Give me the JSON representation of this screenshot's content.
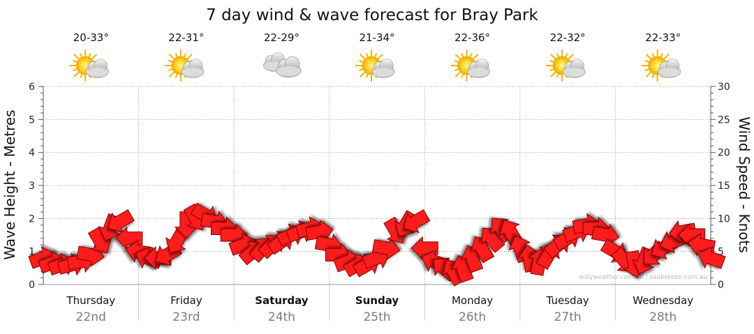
{
  "chart_data": {
    "type": "line",
    "title": "7 day wind & wave forecast for Bray Park",
    "ylabel_left": "Wave Height - Metres",
    "ylabel_right": "Wind Speed - Knots",
    "ylim_left": [
      0,
      6
    ],
    "ylim_right": [
      0,
      30
    ],
    "y_ticks_left": [
      "0",
      "1",
      "2",
      "3",
      "4",
      "5",
      "6"
    ],
    "y_ticks_right": [
      "0",
      "5",
      "10",
      "15",
      "20",
      "25",
      "30"
    ],
    "grid": "dotted",
    "watermark": "willyweather.com.au / seabreeze.com.au",
    "days": [
      {
        "day": "Thursday",
        "date": "22nd",
        "temp": "20-33°",
        "weather": "partly-cloudy-icon",
        "bold": false
      },
      {
        "day": "Friday",
        "date": "23rd",
        "temp": "22-31°",
        "weather": "partly-cloudy-icon",
        "bold": false
      },
      {
        "day": "Saturday",
        "date": "24th",
        "temp": "22-29°",
        "weather": "cloudy-icon",
        "bold": true
      },
      {
        "day": "Sunday",
        "date": "25th",
        "temp": "21-34°",
        "weather": "partly-cloudy-icon",
        "bold": true
      },
      {
        "day": "Monday",
        "date": "26th",
        "temp": "22-36°",
        "weather": "partly-cloudy-icon",
        "bold": false
      },
      {
        "day": "Tuesday",
        "date": "27th",
        "temp": "22-32°",
        "weather": "partly-cloudy-icon",
        "bold": false
      },
      {
        "day": "Wednesday",
        "date": "28th",
        "temp": "22-33°",
        "weather": "partly-cloudy-icon",
        "bold": false
      }
    ],
    "series": [
      {
        "name": "Wind Speed",
        "unit": "knots",
        "marker": "direction-arrow",
        "color": "#ee0000",
        "x_days": [
          0.0,
          0.1,
          0.2,
          0.3,
          0.4,
          0.5,
          0.6,
          0.7,
          0.8,
          0.9,
          1.0,
          1.1,
          1.2,
          1.3,
          1.4,
          1.5,
          1.6,
          1.7,
          1.8,
          1.9,
          2.0,
          2.1,
          2.2,
          2.3,
          2.4,
          2.5,
          2.6,
          2.7,
          2.8,
          2.9,
          3.0,
          3.1,
          3.2,
          3.3,
          3.4,
          3.5,
          3.6,
          3.7,
          3.8,
          3.9,
          4.0,
          4.1,
          4.2,
          4.3,
          4.4,
          4.5,
          4.6,
          4.7,
          4.8,
          4.9,
          5.0,
          5.1,
          5.2,
          5.3,
          5.4,
          5.5,
          5.6,
          5.7,
          5.8,
          5.9,
          6.0,
          6.1,
          6.2,
          6.3,
          6.4,
          6.5,
          6.6,
          6.7,
          6.8,
          6.9,
          7.0
        ],
        "values": [
          4.0,
          3.3,
          3.0,
          3.0,
          3.5,
          4.5,
          6.5,
          8.5,
          9.5,
          7.0,
          5.0,
          4.0,
          4.0,
          4.5,
          6.5,
          9.0,
          10.0,
          10.5,
          9.5,
          8.5,
          7.5,
          6.0,
          5.0,
          5.5,
          6.0,
          6.5,
          7.5,
          8.0,
          8.5,
          8.0,
          6.0,
          4.5,
          3.5,
          3.0,
          3.0,
          4.0,
          5.5,
          8.0,
          9.0,
          9.5,
          5.5,
          3.5,
          2.5,
          2.0,
          2.5,
          4.0,
          5.5,
          7.0,
          8.5,
          8.0,
          5.5,
          4.0,
          3.5,
          4.5,
          6.0,
          7.0,
          8.0,
          9.0,
          8.5,
          7.5,
          5.0,
          3.5,
          3.0,
          3.5,
          4.5,
          5.5,
          6.5,
          8.0,
          7.5,
          6.0,
          4.0
        ],
        "dir_deg": [
          250,
          250,
          250,
          255,
          260,
          280,
          330,
          20,
          60,
          90,
          100,
          110,
          90,
          60,
          30,
          0,
          330,
          300,
          280,
          270,
          270,
          250,
          230,
          220,
          225,
          235,
          245,
          250,
          255,
          260,
          280,
          270,
          250,
          240,
          240,
          250,
          280,
          330,
          30,
          60,
          90,
          110,
          130,
          150,
          160,
          160,
          150,
          140,
          140,
          150,
          160,
          170,
          190,
          210,
          230,
          240,
          250,
          260,
          270,
          280,
          300,
          320,
          350,
          20,
          45,
          60,
          70,
          80,
          90,
          100,
          110
        ]
      },
      {
        "name": "Wave Height",
        "unit": "metres",
        "values": []
      }
    ]
  }
}
